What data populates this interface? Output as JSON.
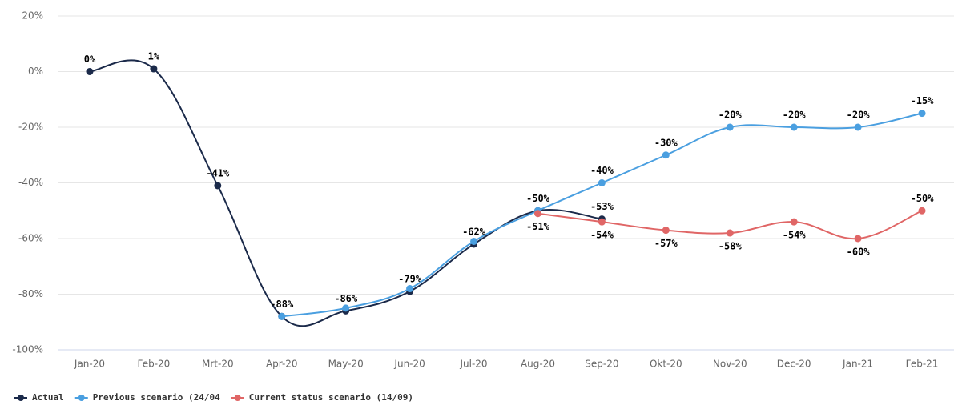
{
  "chart_data": {
    "type": "line",
    "categories": [
      "Jan-20",
      "Feb-20",
      "Mrt-20",
      "Apr-20",
      "May-20",
      "Jun-20",
      "Jul-20",
      "Aug-20",
      "Sep-20",
      "Okt-20",
      "Nov-20",
      "Dec-20",
      "Jan-21",
      "Feb-21"
    ],
    "series": [
      {
        "name": "Actual",
        "color": "#1b2a4a",
        "values": [
          0,
          1,
          -41,
          -88,
          -86,
          -79,
          -62,
          -50,
          -53,
          null,
          null,
          null,
          null,
          null
        ],
        "value_labels": [
          "0%",
          "1%",
          "-41%",
          "-88%",
          "-86%",
          "-79%",
          "-62%",
          "-50%",
          "-53%",
          null,
          null,
          null,
          null,
          null
        ]
      },
      {
        "name": "Previous scenario (24/04",
        "color": "#4a9fe0",
        "values": [
          null,
          null,
          null,
          -88,
          -85,
          -78,
          -61,
          -50,
          -40,
          -30,
          -20,
          -20,
          -20,
          -15
        ],
        "value_labels": [
          null,
          null,
          null,
          null,
          null,
          null,
          null,
          null,
          "-40%",
          "-30%",
          "-20%",
          "-20%",
          "-20%",
          "-15%"
        ]
      },
      {
        "name": "Current status scenario (14/09)",
        "color": "#e06666",
        "values": [
          null,
          null,
          null,
          null,
          null,
          null,
          null,
          -51,
          -54,
          -57,
          -58,
          -54,
          -60,
          -50
        ],
        "value_labels": [
          null,
          null,
          null,
          null,
          null,
          null,
          null,
          "-51%",
          "-54%",
          "-57%",
          "-58%",
          "-54%",
          "-60%",
          "-50%"
        ]
      }
    ],
    "ylim": [
      -100,
      20
    ],
    "yticks": [
      {
        "value": -100,
        "label": "-100%"
      },
      {
        "value": -80,
        "label": "-80%"
      },
      {
        "value": -60,
        "label": "-60%"
      },
      {
        "value": -40,
        "label": "-40%"
      },
      {
        "value": -20,
        "label": "-20%"
      },
      {
        "value": 0,
        "label": "0%"
      },
      {
        "value": 20,
        "label": "20%"
      }
    ],
    "grid": true
  }
}
